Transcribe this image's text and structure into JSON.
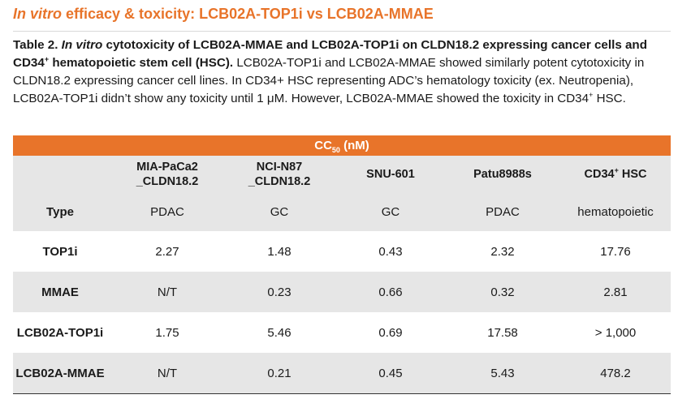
{
  "title": {
    "italic": "In vitro",
    "rest": " efficacy & toxicity: LCB02A-TOP1i vs LCB02A-MMAE"
  },
  "caption": {
    "label": "Table 2.",
    "bold_italic": "In vitro",
    "bold_rest_a": " cytotoxicity of LCB02A-MMAE and LCB02A-TOP1i on CLDN18.2 expressing cancer cells and CD34",
    "bold_sup": "+",
    "bold_rest_b": " hematopoietic stem cell (HSC).",
    "body_a": " LCB02A-TOP1i and LCB02A-MMAE showed similarly potent cytotoxicity in CLDN18.2 expressing cancer cell lines. In CD34+ HSC representing ADC’s hematology toxicity (ex. Neutropenia), LCB02A-TOP1i didn’t show any toxicity until 1 μM. However, LCB02A-MMAE showed the toxicity in CD34",
    "body_sup": "+",
    "body_b": " HSC."
  },
  "table": {
    "band_title": "CC",
    "band_sub": "50",
    "band_unit": " (nM)",
    "columns": [
      {
        "line1": "MIA-PaCa2",
        "line2": "_CLDN18.2"
      },
      {
        "line1": "NCI-N87",
        "line2": "_CLDN18.2"
      },
      {
        "line1": "SNU-601",
        "line2": ""
      },
      {
        "line1": "Patu8988s",
        "line2": ""
      },
      {
        "pre": "CD34",
        "sup": "+",
        "post": " HSC"
      }
    ],
    "rows": [
      {
        "label": "Type",
        "values": [
          "PDAC",
          "GC",
          "GC",
          "PDAC",
          "hematopoietic"
        ]
      },
      {
        "label": "TOP1i",
        "values": [
          "2.27",
          "1.48",
          "0.43",
          "2.32",
          "17.76"
        ]
      },
      {
        "label": "MMAE",
        "values": [
          "N/T",
          "0.23",
          "0.66",
          "0.32",
          "2.81"
        ]
      },
      {
        "label": "LCB02A-TOP1i",
        "values": [
          "1.75",
          "5.46",
          "0.69",
          "17.58",
          "> 1,000"
        ]
      },
      {
        "label": "LCB02A-MMAE",
        "values": [
          "N/T",
          "0.21",
          "0.45",
          "5.43",
          "478.2"
        ]
      }
    ]
  },
  "colors": {
    "accent": "#e8742a",
    "row_gray": "#e6e6e6"
  }
}
